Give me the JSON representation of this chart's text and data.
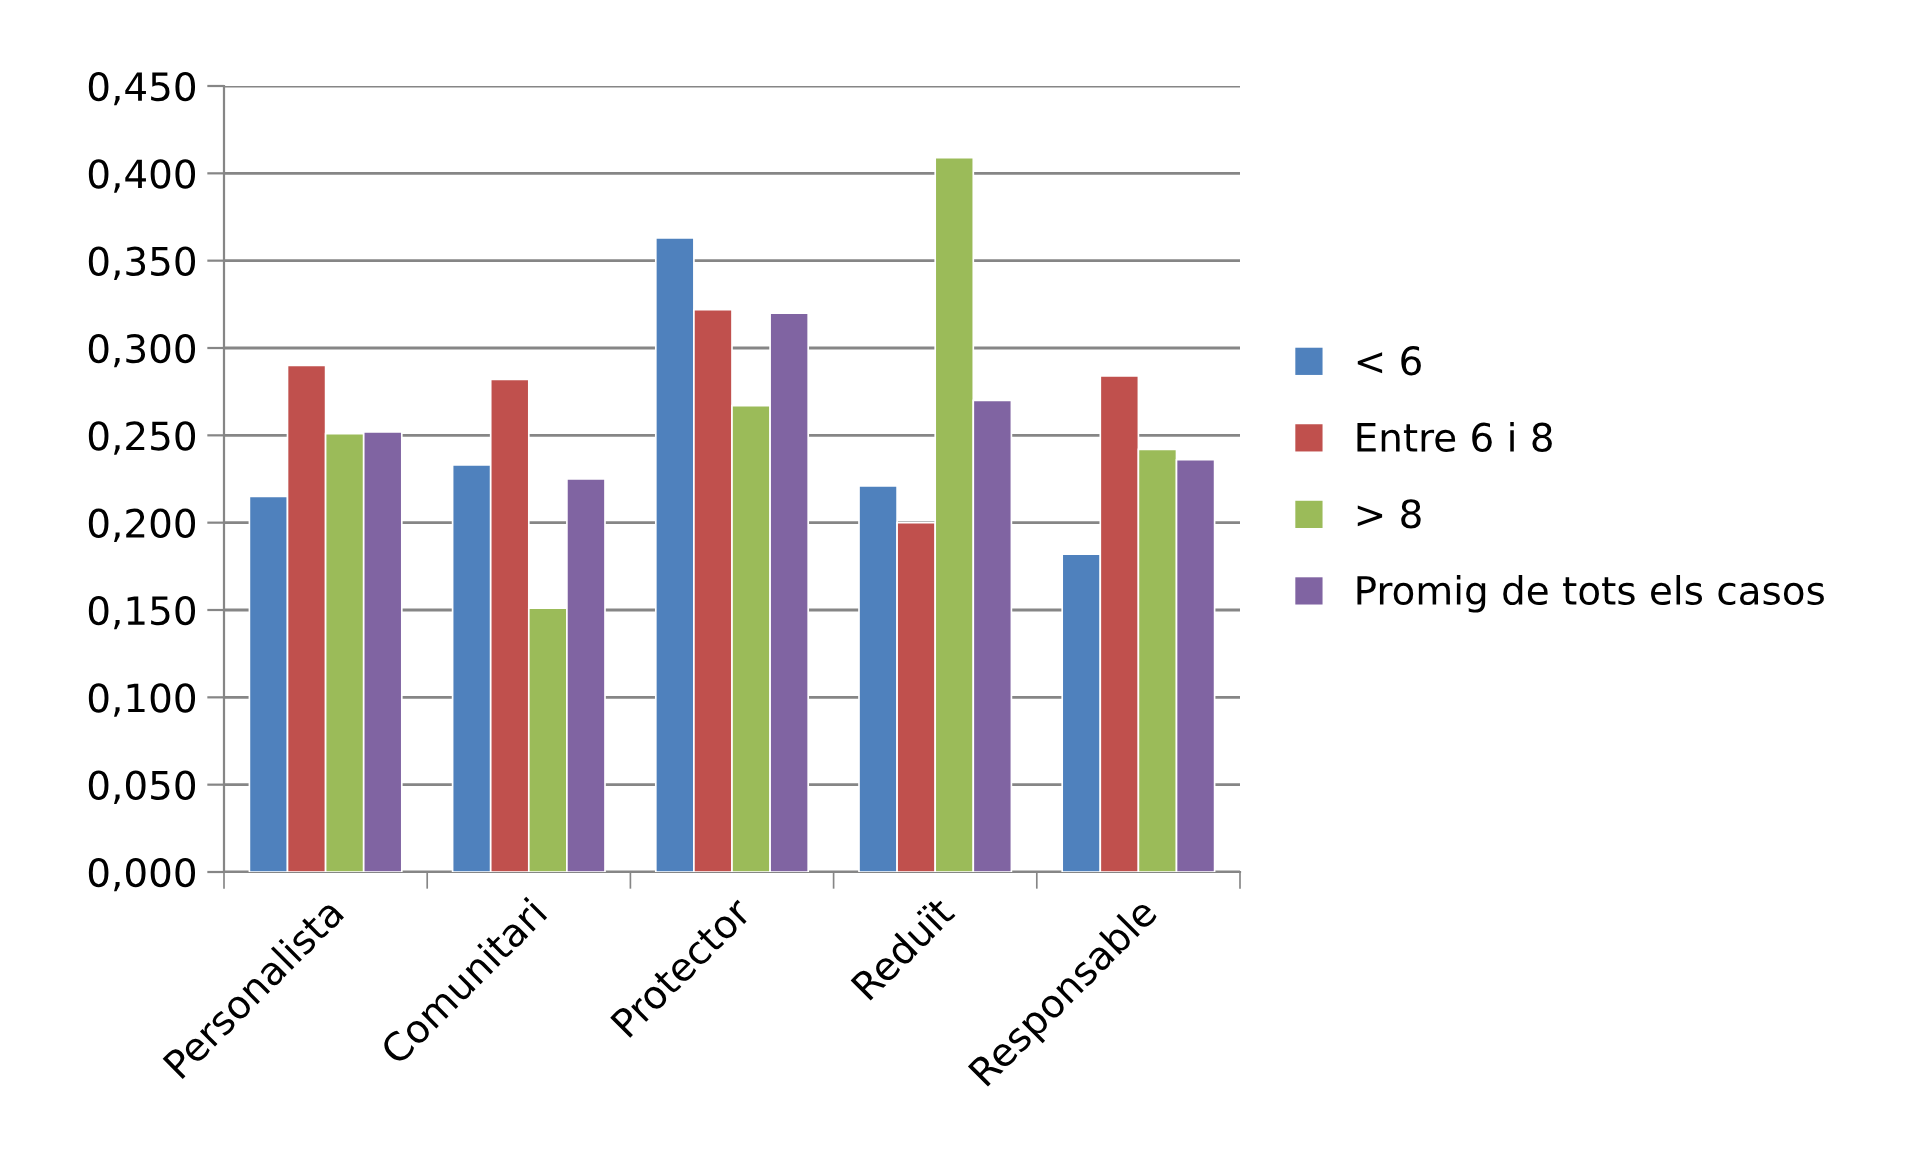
{
  "chart_data": {
    "type": "bar",
    "categories": [
      "Personalista",
      "Comunitari",
      "Protector",
      "Reduït",
      "Responsable"
    ],
    "series": [
      {
        "name": "< 6",
        "color": "#4f81bd",
        "values": [
          0.215,
          0.233,
          0.363,
          0.221,
          0.182
        ]
      },
      {
        "name": "Entre 6 i 8",
        "color": "#c0504d",
        "values": [
          0.29,
          0.282,
          0.322,
          0.2,
          0.284
        ]
      },
      {
        "name": "> 8",
        "color": "#9bbb59",
        "values": [
          0.251,
          0.151,
          0.267,
          0.409,
          0.242
        ]
      },
      {
        "name": "Promig de tots els casos",
        "color": "#8064a2",
        "values": [
          0.252,
          0.225,
          0.32,
          0.27,
          0.236
        ]
      }
    ],
    "ylim": [
      0,
      0.45
    ],
    "yticks": [
      {
        "value": 0,
        "label": "0,000"
      },
      {
        "value": 0.05,
        "label": "0,050"
      },
      {
        "value": 0.1,
        "label": "0,100"
      },
      {
        "value": 0.15,
        "label": "0,150"
      },
      {
        "value": 0.2,
        "label": "0,200"
      },
      {
        "value": 0.25,
        "label": "0,250"
      },
      {
        "value": 0.3,
        "label": "0,300"
      },
      {
        "value": 0.35,
        "label": "0,350"
      },
      {
        "value": 0.4,
        "label": "0,400"
      },
      {
        "value": 0.45,
        "label": "0,450"
      }
    ],
    "grid": "y",
    "legend": "right"
  }
}
